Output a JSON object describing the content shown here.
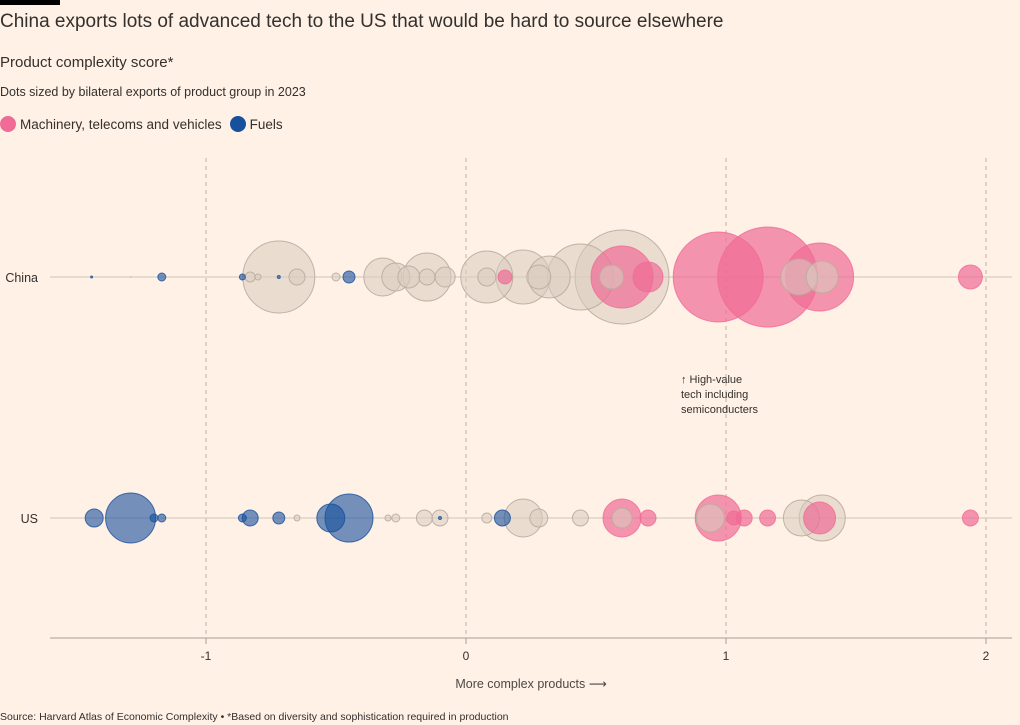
{
  "header": {
    "title": "China exports lots of advanced tech to the US that would be hard to source elsewhere",
    "subtitle": "Product complexity score*",
    "note": "Dots sized by bilateral exports of product group in 2023"
  },
  "legend": [
    {
      "label": "Machinery, telecoms and vehicles",
      "color": "#f06b95"
    },
    {
      "label": "Fuels",
      "color": "#17509c"
    }
  ],
  "source": "Source: Harvard Atlas of Economic Complexity • *Based on diversity and sophistication required in production",
  "annotation": {
    "lines": [
      "↑ High-value",
      "tech including",
      "semiconducters"
    ]
  },
  "colors": {
    "machinery": "#f06b95",
    "fuels": "#17509c",
    "other": "#d9ccbf"
  },
  "chart_data": {
    "type": "scatter",
    "title": "China exports lots of advanced tech to the US that would be hard to source elsewhere",
    "xlabel": "More complex products ⟶",
    "ylabel": "",
    "xlim": [
      -1.6,
      2.1
    ],
    "xticks": [
      -1,
      0,
      1,
      2
    ],
    "tick_labels": [
      "-1",
      "0",
      "1",
      "2"
    ],
    "grid": "vertical dashed",
    "rows": [
      "China",
      "US"
    ],
    "series": [
      {
        "row": "China",
        "points": [
          {
            "x": -1.44,
            "size": 1,
            "group": "fuels"
          },
          {
            "x": -1.29,
            "size": 0.3,
            "group": "other"
          },
          {
            "x": -1.17,
            "size": 4,
            "group": "fuels"
          },
          {
            "x": -0.86,
            "size": 3,
            "group": "fuels"
          },
          {
            "x": -0.83,
            "size": 5,
            "group": "other"
          },
          {
            "x": -0.8,
            "size": 3,
            "group": "other"
          },
          {
            "x": -0.72,
            "size": 36,
            "group": "other"
          },
          {
            "x": -0.72,
            "size": 1.5,
            "group": "fuels"
          },
          {
            "x": -0.65,
            "size": 8,
            "group": "other"
          },
          {
            "x": -0.5,
            "size": 4,
            "group": "other"
          },
          {
            "x": -0.45,
            "size": 6,
            "group": "fuels"
          },
          {
            "x": -0.32,
            "size": 19,
            "group": "other"
          },
          {
            "x": -0.27,
            "size": 14,
            "group": "other"
          },
          {
            "x": -0.22,
            "size": 11,
            "group": "other"
          },
          {
            "x": -0.15,
            "size": 24,
            "group": "other"
          },
          {
            "x": -0.15,
            "size": 8,
            "group": "other"
          },
          {
            "x": -0.08,
            "size": 10,
            "group": "other"
          },
          {
            "x": 0.08,
            "size": 26,
            "group": "other"
          },
          {
            "x": 0.08,
            "size": 9,
            "group": "other"
          },
          {
            "x": 0.15,
            "size": 7,
            "group": "machinery"
          },
          {
            "x": 0.22,
            "size": 27,
            "group": "other"
          },
          {
            "x": 0.28,
            "size": 12,
            "group": "other"
          },
          {
            "x": 0.32,
            "size": 21,
            "group": "other"
          },
          {
            "x": 0.44,
            "size": 33,
            "group": "other"
          },
          {
            "x": 0.56,
            "size": 12,
            "group": "other"
          },
          {
            "x": 0.6,
            "size": 31,
            "group": "machinery"
          },
          {
            "x": 0.6,
            "size": 47,
            "group": "other"
          },
          {
            "x": 0.7,
            "size": 15,
            "group": "machinery"
          },
          {
            "x": 0.97,
            "size": 45,
            "group": "machinery"
          },
          {
            "x": 1.16,
            "size": 50,
            "group": "machinery"
          },
          {
            "x": 1.28,
            "size": 18,
            "group": "other"
          },
          {
            "x": 1.36,
            "size": 34,
            "group": "machinery"
          },
          {
            "x": 1.37,
            "size": 16,
            "group": "other"
          },
          {
            "x": 1.94,
            "size": 12,
            "group": "machinery"
          }
        ]
      },
      {
        "row": "US",
        "points": [
          {
            "x": -1.43,
            "size": 9,
            "group": "fuels"
          },
          {
            "x": -1.29,
            "size": 25,
            "group": "fuels"
          },
          {
            "x": -1.2,
            "size": 4,
            "group": "fuels"
          },
          {
            "x": -1.17,
            "size": 4,
            "group": "fuels"
          },
          {
            "x": -0.86,
            "size": 4,
            "group": "fuels"
          },
          {
            "x": -0.83,
            "size": 8,
            "group": "fuels"
          },
          {
            "x": -0.72,
            "size": 6,
            "group": "fuels"
          },
          {
            "x": -0.65,
            "size": 3,
            "group": "other"
          },
          {
            "x": -0.52,
            "size": 14,
            "group": "fuels"
          },
          {
            "x": -0.45,
            "size": 24,
            "group": "fuels"
          },
          {
            "x": -0.3,
            "size": 3,
            "group": "other"
          },
          {
            "x": -0.27,
            "size": 4,
            "group": "other"
          },
          {
            "x": -0.16,
            "size": 8,
            "group": "other"
          },
          {
            "x": -0.1,
            "size": 8,
            "group": "other"
          },
          {
            "x": -0.1,
            "size": 1.5,
            "group": "fuels"
          },
          {
            "x": 0.08,
            "size": 5,
            "group": "other"
          },
          {
            "x": 0.14,
            "size": 8,
            "group": "fuels"
          },
          {
            "x": 0.22,
            "size": 19,
            "group": "other"
          },
          {
            "x": 0.28,
            "size": 9,
            "group": "other"
          },
          {
            "x": 0.44,
            "size": 8,
            "group": "other"
          },
          {
            "x": 0.6,
            "size": 19,
            "group": "machinery"
          },
          {
            "x": 0.6,
            "size": 10,
            "group": "other"
          },
          {
            "x": 0.7,
            "size": 8,
            "group": "machinery"
          },
          {
            "x": 0.94,
            "size": 14,
            "group": "other"
          },
          {
            "x": 0.97,
            "size": 23,
            "group": "machinery"
          },
          {
            "x": 1.03,
            "size": 7,
            "group": "machinery"
          },
          {
            "x": 1.07,
            "size": 8,
            "group": "machinery"
          },
          {
            "x": 1.16,
            "size": 8,
            "group": "machinery"
          },
          {
            "x": 1.29,
            "size": 18,
            "group": "other"
          },
          {
            "x": 1.36,
            "size": 16,
            "group": "machinery"
          },
          {
            "x": 1.37,
            "size": 23,
            "group": "other"
          },
          {
            "x": 1.94,
            "size": 8,
            "group": "machinery"
          }
        ]
      }
    ]
  }
}
